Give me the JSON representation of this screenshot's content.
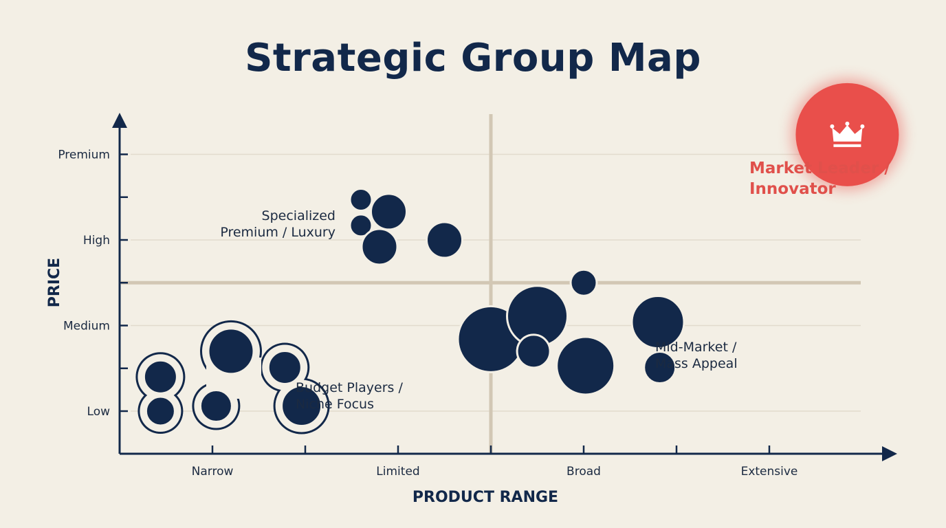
{
  "title": "Strategic Group Map",
  "colors": {
    "background": "#f3efe5",
    "bubble": "#12284a",
    "leader": "#e94f4b",
    "leader_text": "#e0504b",
    "divider": "#d2c7b4",
    "grid": "#e2dbcd",
    "axis": "#12284a"
  },
  "chart_data": {
    "type": "scatter",
    "xlabel": "PRODUCT RANGE",
    "ylabel": "PRICE",
    "x_categories": [
      "Narrow",
      "Limited",
      "Broad",
      "Extensive"
    ],
    "y_categories": [
      "Low",
      "Medium",
      "High",
      "Premium"
    ],
    "groups": [
      {
        "id": "luxury",
        "label": [
          "Specialized",
          "Premium / Luxury"
        ],
        "bubbles": [
          {
            "x": 1.8,
            "y": 3.47,
            "size": 16
          },
          {
            "x": 1.95,
            "y": 3.33,
            "size": 26
          },
          {
            "x": 1.8,
            "y": 3.17,
            "size": 16
          },
          {
            "x": 2.25,
            "y": 3.0,
            "size": 26
          },
          {
            "x": 1.9,
            "y": 2.92,
            "size": 26
          }
        ]
      },
      {
        "id": "mid-market",
        "label": [
          "Mid-Market /",
          "Mass Appeal"
        ],
        "bubbles": [
          {
            "x": 3.0,
            "y": 2.5,
            "size": 19
          },
          {
            "x": 2.5,
            "y": 1.84,
            "size": 48
          },
          {
            "x": 2.75,
            "y": 2.11,
            "size": 44
          },
          {
            "x": 3.4,
            "y": 2.04,
            "size": 38
          },
          {
            "x": 2.73,
            "y": 1.7,
            "size": 24
          },
          {
            "x": 3.01,
            "y": 1.53,
            "size": 42
          },
          {
            "x": 3.41,
            "y": 1.51,
            "size": 23
          }
        ]
      },
      {
        "id": "budget",
        "label": [
          "Budget Players /",
          "Niche Focus"
        ],
        "bubbles": [
          {
            "x": 1.1,
            "y": 1.7,
            "size": 33
          },
          {
            "x": 0.72,
            "y": 1.4,
            "size": 24
          },
          {
            "x": 1.39,
            "y": 1.51,
            "size": 24
          },
          {
            "x": 0.72,
            "y": 1.0,
            "size": 21
          },
          {
            "x": 1.02,
            "y": 1.06,
            "size": 23
          },
          {
            "x": 1.48,
            "y": 1.06,
            "size": 29
          }
        ]
      }
    ],
    "leader": {
      "label": [
        "Market Leader /",
        "Innovator"
      ],
      "icon": "crown-icon",
      "x": 4.42,
      "y": 4.23,
      "size": 75
    }
  }
}
